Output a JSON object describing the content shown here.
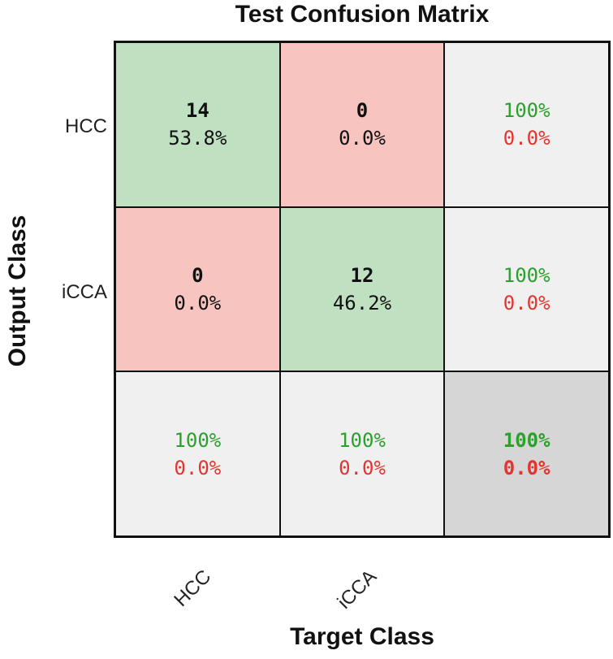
{
  "chart_data": {
    "type": "heatmap",
    "title": "Test Confusion Matrix",
    "xlabel": "Target Class",
    "ylabel": "Output Class",
    "classes": [
      "HCC",
      "iCCA"
    ],
    "matrix": [
      [
        {
          "count": "14",
          "percent": "53.8%"
        },
        {
          "count": "0",
          "percent": "0.0%"
        }
      ],
      [
        {
          "count": "0",
          "percent": "0.0%"
        },
        {
          "count": "12",
          "percent": "46.2%"
        }
      ]
    ],
    "row_summary": [
      {
        "correct": "100%",
        "error": "0.0%"
      },
      {
        "correct": "100%",
        "error": "0.0%"
      }
    ],
    "col_summary": [
      {
        "correct": "100%",
        "error": "0.0%"
      },
      {
        "correct": "100%",
        "error": "0.0%"
      }
    ],
    "overall": {
      "correct": "100%",
      "error": "0.0%"
    },
    "colors": {
      "correct_cell": "#c0e0c2",
      "wrong_cell": "#f7c4c0",
      "summary_cell": "#f0f0f0",
      "total_cell": "#d6d6d6",
      "correct_text": "#2ca02c",
      "error_text": "#e3342f"
    }
  }
}
